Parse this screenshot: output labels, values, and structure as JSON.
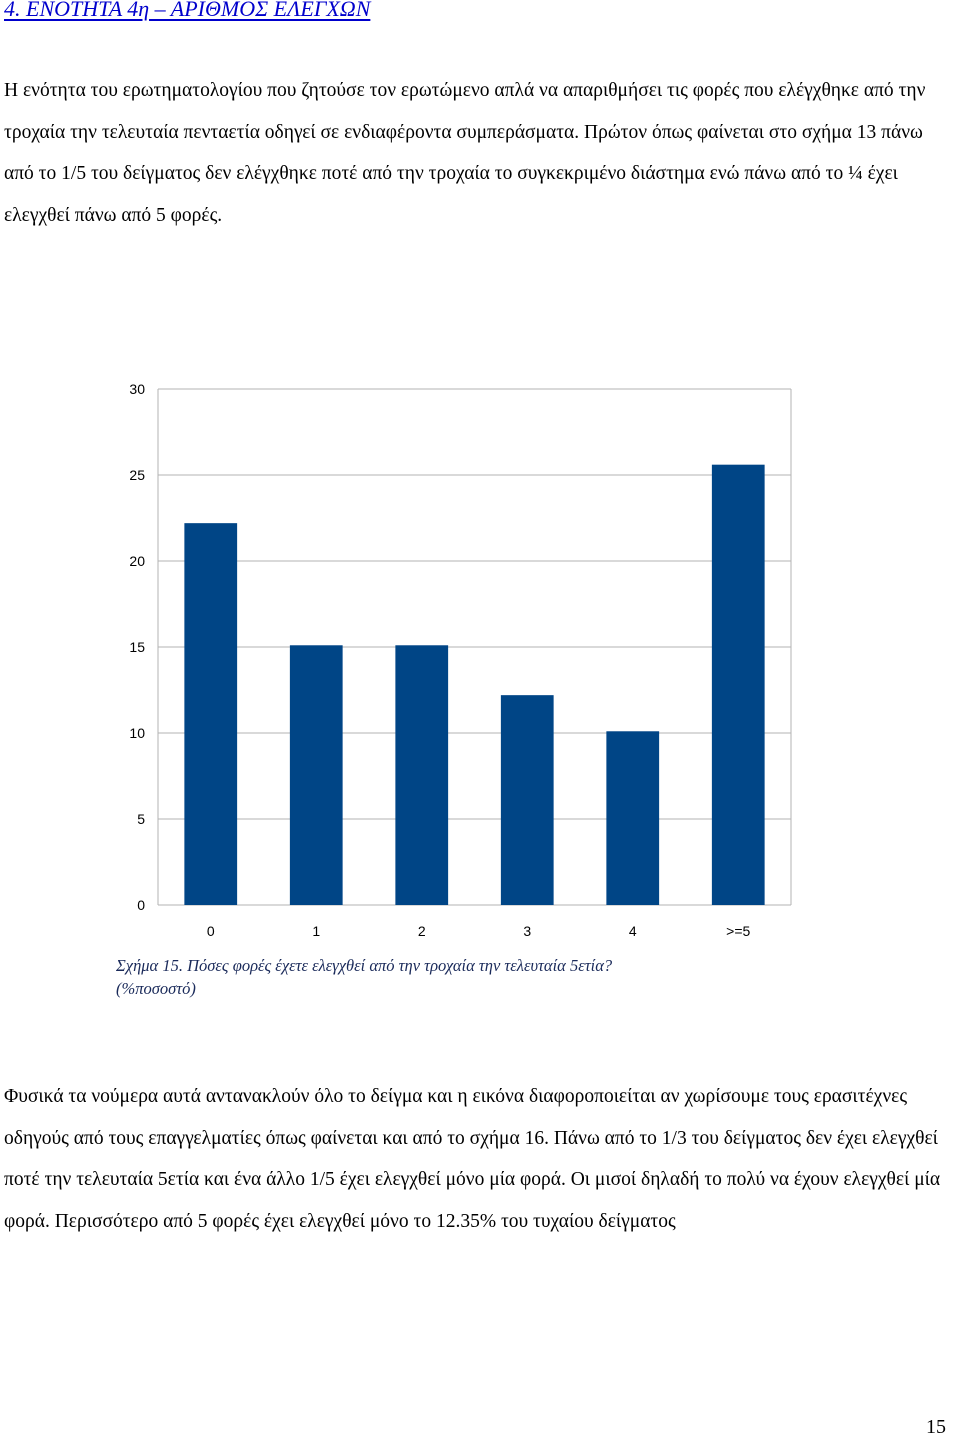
{
  "heading": "4. ΕΝΟΤΗΤΑ 4η – ΑΡΙΘΜΟΣ ΕΛΕΓΧΩΝ",
  "paragraph1": "Η ενότητα του ερωτηματολογίου που ζητούσε τον ερωτώμενο απλά να απαριθμήσει τις φορές που ελέγχθηκε από την τροχαία την τελευταία πενταετία οδηγεί σε ενδιαφέροντα συμπεράσματα. Πρώτον όπως φαίνεται στο σχήμα 13 πάνω από το 1/5 του δείγματος δεν ελέγχθηκε ποτέ από την τροχαία το συγκεκριμένο διάστημα ενώ πάνω από το ¼ έχει ελεγχθεί πάνω από 5 φορές.",
  "caption_line1": "Σχήμα 15. Πόσες φορές έχετε ελεγχθεί από την τροχαία την τελευταία 5ετία?",
  "caption_line2": "(%ποσοστό)",
  "paragraph2": "Φυσικά τα νούμερα αυτά αντανακλούν όλο το δείγμα και η εικόνα διαφοροποιείται αν χωρίσουμε τους ερασιτέχνες οδηγούς από τους επαγγελματίες όπως φαίνεται και από το σχήμα 16. Πάνω από το 1/3 του δείγματος δεν έχει ελεγχθεί ποτέ την τελευταία 5ετία και ένα άλλο 1/5 έχει ελεγχθεί μόνο μία φορά. Οι μισοί δηλαδή το πολύ να έχουν ελεγχθεί μία φορά. Περισσότερο από 5 φορές έχει ελεγχθεί μόνο το 12.35% του τυχαίου δείγματος",
  "page_number": "15",
  "chart_data": {
    "type": "bar",
    "categories": [
      "0",
      "1",
      "2",
      "3",
      "4",
      ">=5"
    ],
    "values": [
      22.2,
      15.1,
      15.1,
      12.2,
      10.1,
      25.6
    ],
    "yticks": [
      "0",
      "5",
      "10",
      "15",
      "20",
      "25",
      "30"
    ],
    "ylim": [
      0,
      30
    ],
    "grid": true,
    "legend": "none",
    "bar_color": "#004586",
    "grid_color": "#b3b3b3"
  }
}
